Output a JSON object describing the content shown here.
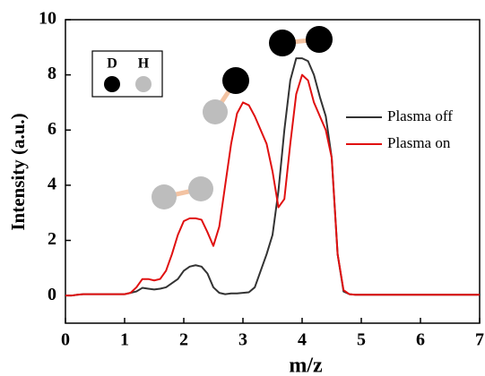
{
  "chart_data": {
    "type": "line",
    "x_label": "m/z",
    "y_label": "Intensity (a.u.)",
    "xlim": [
      0,
      7
    ],
    "ylim": [
      -1,
      10
    ],
    "xticks": [
      0,
      1,
      2,
      3,
      4,
      5,
      6,
      7
    ],
    "yticks": [
      0,
      2,
      4,
      6,
      8,
      10
    ],
    "legend_position": "right",
    "species_legend": [
      "D",
      "H"
    ],
    "x": [
      0,
      0.1,
      0.2,
      0.3,
      0.4,
      0.5,
      0.6,
      0.7,
      0.8,
      0.9,
      1,
      1.1,
      1.2,
      1.3,
      1.4,
      1.5,
      1.6,
      1.7,
      1.8,
      1.9,
      2,
      2.1,
      2.2,
      2.3,
      2.4,
      2.5,
      2.6,
      2.7,
      2.8,
      2.9,
      3,
      3.1,
      3.2,
      3.3,
      3.4,
      3.5,
      3.6,
      3.7,
      3.8,
      3.9,
      4,
      4.1,
      4.2,
      4.3,
      4.4,
      4.5,
      4.6,
      4.7,
      4.8,
      4.9,
      5,
      5.1,
      5.2,
      5.3,
      5.4,
      5.5,
      5.6,
      5.7,
      5.8,
      5.9,
      6,
      6.1,
      6.2,
      6.3,
      6.4,
      6.5,
      6.6,
      6.7,
      6.8,
      6.9,
      7
    ],
    "series": [
      {
        "name": "Plasma off",
        "color": "#333333",
        "values": [
          0,
          0,
          0.03,
          0.05,
          0.05,
          0.05,
          0.05,
          0.05,
          0.05,
          0.05,
          0.05,
          0.1,
          0.15,
          0.28,
          0.25,
          0.22,
          0.25,
          0.3,
          0.45,
          0.6,
          0.9,
          1.05,
          1.1,
          1.05,
          0.8,
          0.3,
          0.1,
          0.05,
          0.08,
          0.08,
          0.1,
          0.12,
          0.3,
          0.9,
          1.5,
          2.2,
          3.8,
          6,
          7.8,
          8.6,
          8.6,
          8.5,
          8,
          7.2,
          6.5,
          5,
          1.5,
          0.15,
          0.05,
          0.03,
          0.03,
          0.03,
          0.03,
          0.03,
          0.03,
          0.03,
          0.03,
          0.03,
          0.03,
          0.03,
          0.03,
          0.03,
          0.03,
          0.03,
          0.03,
          0.03,
          0.03,
          0.03,
          0.03,
          0.03,
          0.03
        ]
      },
      {
        "name": "Plasma on",
        "color": "#e01010",
        "values": [
          0,
          0,
          0.03,
          0.05,
          0.05,
          0.05,
          0.05,
          0.05,
          0.05,
          0.05,
          0.05,
          0.1,
          0.3,
          0.6,
          0.6,
          0.55,
          0.6,
          0.9,
          1.5,
          2.2,
          2.7,
          2.8,
          2.8,
          2.75,
          2.3,
          1.8,
          2.5,
          4,
          5.5,
          6.6,
          7,
          6.9,
          6.5,
          6,
          5.5,
          4.5,
          3.2,
          3.5,
          5.5,
          7.3,
          8,
          7.8,
          7,
          6.5,
          6,
          5,
          1.5,
          0.2,
          0.05,
          0.03,
          0.03,
          0.03,
          0.03,
          0.03,
          0.03,
          0.03,
          0.03,
          0.03,
          0.03,
          0.03,
          0.03,
          0.03,
          0.03,
          0.03,
          0.03,
          0.03,
          0.03,
          0.03,
          0.03,
          0.03,
          0.03
        ]
      }
    ]
  }
}
